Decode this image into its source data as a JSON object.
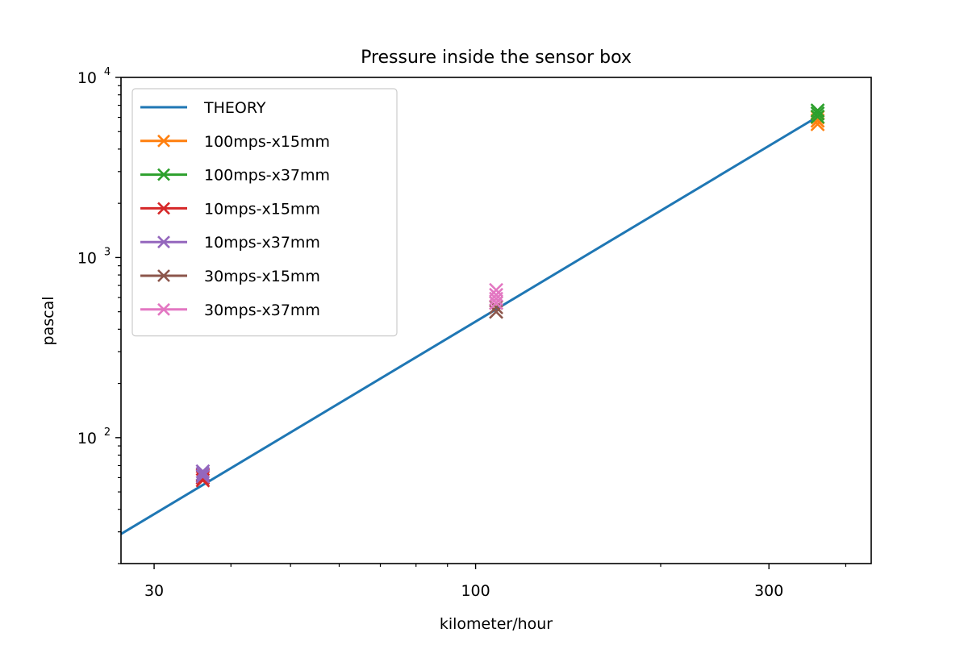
{
  "chart_data": {
    "type": "line",
    "title": "Pressure inside the sensor box",
    "xlabel": "kilometer/hour",
    "ylabel": "pascal",
    "xscale": "log",
    "yscale": "log",
    "xlim": [
      26.5,
      440
    ],
    "ylim": [
      20,
      10000
    ],
    "grid": false,
    "legend_position": "upper-left",
    "x_ticks": [
      {
        "value": 30,
        "label": "30"
      },
      {
        "value": 100,
        "label": "100"
      },
      {
        "value": 300,
        "label": "300"
      }
    ],
    "y_ticks": [
      {
        "value": 100,
        "base": "10",
        "exp": "2"
      },
      {
        "value": 1000,
        "base": "10",
        "exp": "3"
      },
      {
        "value": 10000,
        "base": "10",
        "exp": "4"
      }
    ],
    "series": [
      {
        "name": "THEORY",
        "kind": "line",
        "color": "#1f77b4",
        "x": [
          26.5,
          360
        ],
        "y": [
          29.2,
          6050
        ]
      },
      {
        "name": "100mps-x15mm",
        "kind": "marker",
        "color": "#ff7f0e",
        "x": [
          360,
          360,
          360
        ],
        "y": [
          5500,
          5750,
          6000
        ]
      },
      {
        "name": "100mps-x37mm",
        "kind": "marker",
        "color": "#2ca02c",
        "x": [
          360,
          360,
          360
        ],
        "y": [
          6050,
          6300,
          6550
        ]
      },
      {
        "name": "10mps-x15mm",
        "kind": "marker",
        "color": "#d62728",
        "x": [
          36,
          36,
          36
        ],
        "y": [
          58,
          60,
          62
        ]
      },
      {
        "name": "10mps-x37mm",
        "kind": "marker",
        "color": "#9467bd",
        "x": [
          36,
          36,
          36
        ],
        "y": [
          61,
          63,
          65
        ]
      },
      {
        "name": "30mps-x15mm",
        "kind": "marker",
        "color": "#8c564b",
        "x": [
          108,
          108,
          108
        ],
        "y": [
          500,
          530,
          560
        ]
      },
      {
        "name": "30mps-x37mm",
        "kind": "marker",
        "color": "#e377c2",
        "x": [
          108,
          108,
          108,
          108
        ],
        "y": [
          560,
          590,
          620,
          660
        ]
      }
    ]
  }
}
